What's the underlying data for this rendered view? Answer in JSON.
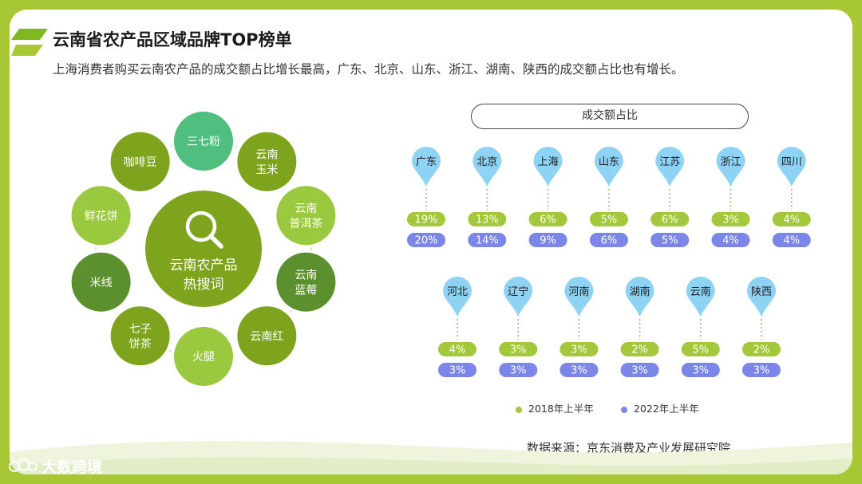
{
  "header": {
    "title": "云南省农产品区域品牌TOP榜单",
    "subtitle": "上海消费者购买云南农产品的成交额占比增长最高，广东、北京、山东、浙江、湖南、陕西的成交额占比也有增长。"
  },
  "keywords": {
    "center_label": [
      "云南农产品",
      "热搜词"
    ],
    "items": [
      {
        "label": [
          "三七粉"
        ],
        "color": "#4fbe7e"
      },
      {
        "label": [
          "云南",
          "玉米"
        ],
        "color": "#7ea41d"
      },
      {
        "label": [
          "云南",
          "普洱茶"
        ],
        "color": "#9ac93f"
      },
      {
        "label": [
          "云南",
          "蓝莓"
        ],
        "color": "#5c8f2d"
      },
      {
        "label": [
          "云南红"
        ],
        "color": "#7ea41d"
      },
      {
        "label": [
          "火腿"
        ],
        "color": "#9ac93f"
      },
      {
        "label": [
          "七子",
          "饼茶"
        ],
        "color": "#7ea41d"
      },
      {
        "label": [
          "米线"
        ],
        "color": "#5c8f2d"
      },
      {
        "label": [
          "鲜花饼"
        ],
        "color": "#9ac93f"
      },
      {
        "label": [
          "咖啡豆"
        ],
        "color": "#7ea41d"
      }
    ]
  },
  "chart_data": {
    "type": "table",
    "title": "成交额占比",
    "series": [
      {
        "name": "2018年上半年",
        "color": "#a3c83b"
      },
      {
        "name": "2022年上半年",
        "color": "#7b86e8"
      }
    ],
    "regions": [
      {
        "name": "广东",
        "v2018": "19%",
        "v2022": "20%"
      },
      {
        "name": "北京",
        "v2018": "13%",
        "v2022": "14%"
      },
      {
        "name": "上海",
        "v2018": "6%",
        "v2022": "9%"
      },
      {
        "name": "山东",
        "v2018": "5%",
        "v2022": "6%"
      },
      {
        "name": "江苏",
        "v2018": "6%",
        "v2022": "5%"
      },
      {
        "name": "浙江",
        "v2018": "3%",
        "v2022": "4%"
      },
      {
        "name": "四川",
        "v2018": "4%",
        "v2022": "4%"
      },
      {
        "name": "河北",
        "v2018": "4%",
        "v2022": "3%"
      },
      {
        "name": "辽宁",
        "v2018": "3%",
        "v2022": "3%"
      },
      {
        "name": "河南",
        "v2018": "3%",
        "v2022": "3%"
      },
      {
        "name": "湖南",
        "v2018": "2%",
        "v2022": "3%"
      },
      {
        "name": "云南",
        "v2018": "5%",
        "v2022": "3%"
      },
      {
        "name": "陕西",
        "v2018": "2%",
        "v2022": "3%"
      }
    ]
  },
  "footer": {
    "source": "数据来源：京东消费及产业发展研究院",
    "logo_text": "大数跨境"
  },
  "theme": {
    "accent": "#a7c734",
    "pin": "#8fd3f4"
  }
}
